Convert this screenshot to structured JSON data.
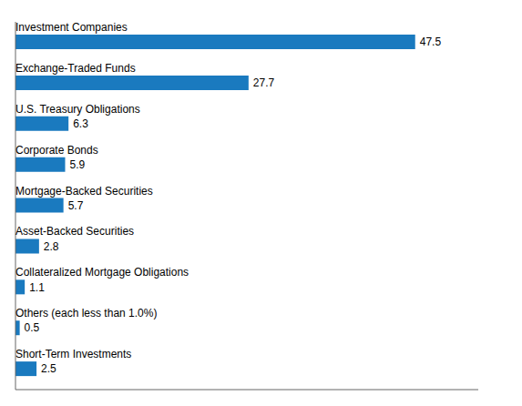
{
  "chart_data": {
    "type": "bar",
    "orientation": "horizontal",
    "categories": [
      "Investment Companies",
      "Exchange-Traded Funds",
      "U.S. Treasury Obligations",
      "Corporate Bonds",
      "Mortgage-Backed Securities",
      "Asset-Backed Securities",
      "Collateralized Mortgage Obligations",
      "Others (each less than 1.0%)",
      "Short-Term Investments"
    ],
    "values": [
      47.5,
      27.7,
      6.3,
      5.9,
      5.7,
      2.8,
      1.1,
      0.5,
      2.5
    ],
    "color": "#1a7abf",
    "xlim": [
      0,
      55
    ],
    "data_labels": true,
    "tick_labels": false
  }
}
